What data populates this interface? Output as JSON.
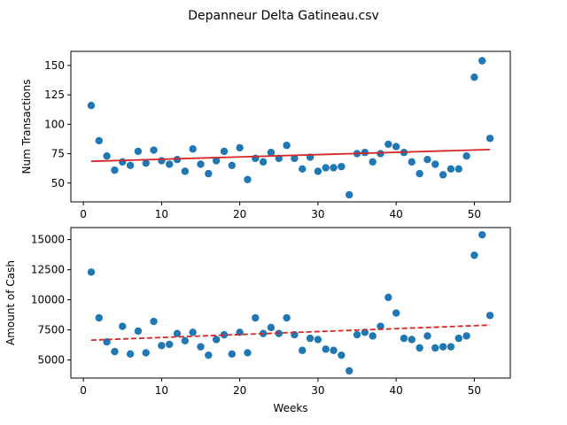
{
  "figure": {
    "title": "Depanneur Delta Gatineau.csv"
  },
  "colors": {
    "points": "#1f77b4",
    "trend": "#d62728",
    "axes": "#000000",
    "background": "#ffffff"
  },
  "chart_data": [
    {
      "type": "scatter",
      "title": "Depanneur Delta Gatineau.csv",
      "xlabel": "",
      "ylabel": "Num Transactions",
      "xlim": [
        -1.6,
        54.6
      ],
      "ylim": [
        34,
        162
      ],
      "xticks": [
        0,
        10,
        20,
        30,
        40,
        50
      ],
      "yticks": [
        50,
        75,
        100,
        125,
        150
      ],
      "grid": false,
      "trendline": {
        "style": "solid",
        "x": [
          1,
          52
        ],
        "y": [
          68.5,
          78.5
        ]
      },
      "x": [
        1,
        2,
        3,
        4,
        5,
        6,
        7,
        8,
        9,
        10,
        11,
        12,
        13,
        14,
        15,
        16,
        17,
        18,
        19,
        20,
        21,
        22,
        23,
        24,
        25,
        26,
        27,
        28,
        29,
        30,
        31,
        32,
        33,
        34,
        35,
        36,
        37,
        38,
        39,
        40,
        41,
        42,
        43,
        44,
        45,
        46,
        47,
        48,
        49,
        50,
        51,
        52
      ],
      "y": [
        116,
        86,
        73,
        61,
        68,
        65,
        77,
        67,
        78,
        69,
        66,
        70,
        60,
        79,
        66,
        58,
        69,
        77,
        65,
        80,
        53,
        71,
        68,
        76,
        71,
        82,
        71,
        62,
        72,
        60,
        63,
        63,
        64,
        40,
        75,
        76,
        68,
        75,
        83,
        81,
        76,
        68,
        58,
        70,
        66,
        57,
        62,
        62,
        73,
        140,
        154,
        88
      ]
    },
    {
      "type": "scatter",
      "title": "",
      "xlabel": "Weeks",
      "ylabel": "Amount of Cash",
      "xlim": [
        -1.6,
        54.6
      ],
      "ylim": [
        3500,
        16000
      ],
      "xticks": [
        0,
        10,
        20,
        30,
        40,
        50
      ],
      "yticks": [
        5000,
        7500,
        10000,
        12500,
        15000
      ],
      "grid": false,
      "trendline": {
        "style": "dashed",
        "x": [
          1,
          52
        ],
        "y": [
          6650,
          7900
        ]
      },
      "x": [
        1,
        2,
        3,
        4,
        5,
        6,
        7,
        8,
        9,
        10,
        11,
        12,
        13,
        14,
        15,
        16,
        17,
        18,
        19,
        20,
        21,
        22,
        23,
        24,
        25,
        26,
        27,
        28,
        29,
        30,
        31,
        32,
        33,
        34,
        35,
        36,
        37,
        38,
        39,
        40,
        41,
        42,
        43,
        44,
        45,
        46,
        47,
        48,
        49,
        50,
        51,
        52
      ],
      "y": [
        12300,
        8500,
        6500,
        5700,
        7800,
        5500,
        7400,
        5600,
        8200,
        6200,
        6300,
        7200,
        6600,
        7300,
        6100,
        5400,
        6700,
        7100,
        5500,
        7300,
        5600,
        8500,
        7200,
        7700,
        7200,
        8500,
        7100,
        5800,
        6800,
        6700,
        5900,
        5800,
        5400,
        4100,
        7100,
        7300,
        7000,
        7800,
        10200,
        8900,
        6800,
        6700,
        6000,
        7000,
        6000,
        6100,
        6100,
        6800,
        7000,
        13700,
        15400,
        8700
      ]
    }
  ]
}
